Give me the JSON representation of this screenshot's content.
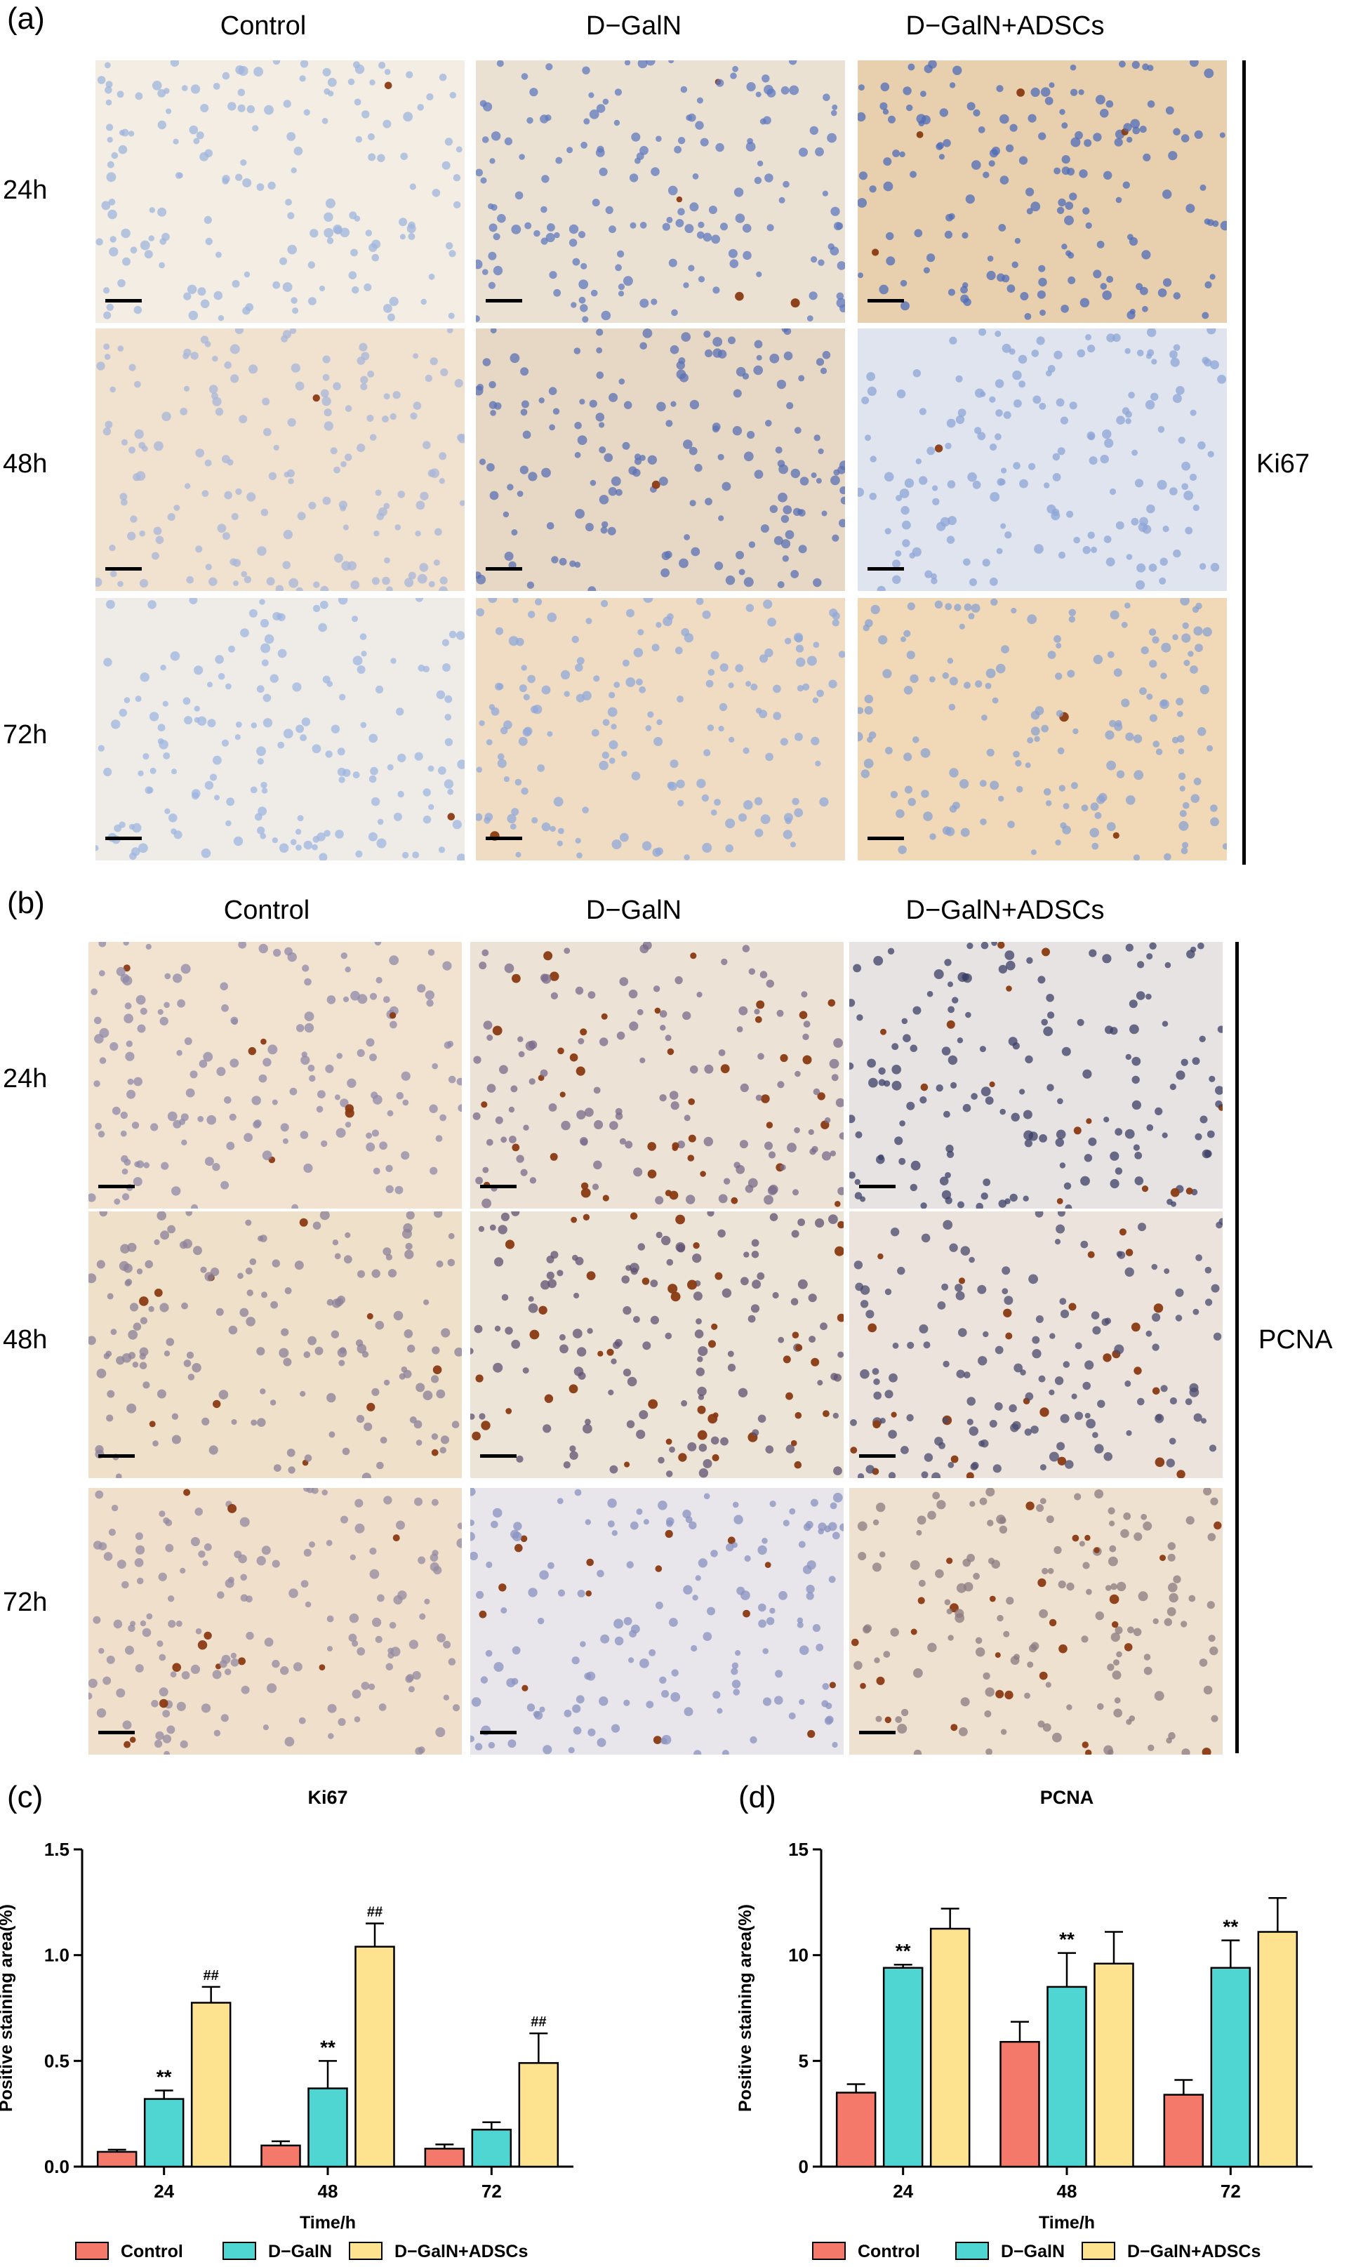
{
  "figure": {
    "panel_a": {
      "letter": "(a)",
      "columns": [
        "Control",
        "D−GalN",
        "D−GalN+ADSCs"
      ],
      "rows": [
        "24h",
        "48h",
        "72h"
      ],
      "stain_label": "Ki67"
    },
    "panel_b": {
      "letter": "(b)",
      "columns": [
        "Control",
        "D−GalN",
        "D−GalN+ADSCs"
      ],
      "rows": [
        "24h",
        "48h",
        "72h"
      ],
      "stain_label": "PCNA"
    },
    "panel_c_letter": "(c)",
    "panel_d_letter": "(d)"
  },
  "colors": {
    "control": "#f4796b",
    "dgaln": "#4fd6d3",
    "dgaln_adscs": "#fde28f"
  },
  "chart_data": [
    {
      "type": "bar",
      "title": "Ki67",
      "xlabel": "Time/h",
      "ylabel": "Positive staining area(%)",
      "categories": [
        "24",
        "48",
        "72"
      ],
      "ylim": [
        0,
        1.5
      ],
      "yticks": [
        "0.0",
        "0.5",
        "1.0",
        "1.5"
      ],
      "series": [
        {
          "name": "Control",
          "values": [
            0.07,
            0.1,
            0.085
          ],
          "errors": [
            0.01,
            0.02,
            0.02
          ],
          "marks": [
            "",
            "",
            ""
          ]
        },
        {
          "name": "D−GalN",
          "values": [
            0.32,
            0.37,
            0.175
          ],
          "errors": [
            0.04,
            0.13,
            0.035
          ],
          "marks": [
            "**",
            "**",
            ""
          ]
        },
        {
          "name": "D−GalN+ADSCs",
          "values": [
            0.775,
            1.04,
            0.49
          ],
          "errors": [
            0.075,
            0.11,
            0.14
          ],
          "marks": [
            "##",
            "##",
            "##"
          ]
        }
      ],
      "legend": "bottom"
    },
    {
      "type": "bar",
      "title": "PCNA",
      "xlabel": "Time/h",
      "ylabel": "Positive staining area(%)",
      "categories": [
        "24",
        "48",
        "72"
      ],
      "ylim": [
        0,
        15
      ],
      "yticks": [
        "0",
        "5",
        "10",
        "15"
      ],
      "series": [
        {
          "name": "Control",
          "values": [
            3.5,
            5.9,
            3.4
          ],
          "errors": [
            0.4,
            0.95,
            0.7
          ],
          "marks": [
            "",
            "",
            ""
          ]
        },
        {
          "name": "D−GalN",
          "values": [
            9.4,
            8.5,
            9.4
          ],
          "errors": [
            0.15,
            1.6,
            1.3
          ],
          "marks": [
            "**",
            "**",
            "**"
          ]
        },
        {
          "name": "D−GalN+ADSCs",
          "values": [
            11.25,
            9.6,
            11.1
          ],
          "errors": [
            0.95,
            1.5,
            1.6
          ],
          "marks": [
            "",
            "",
            ""
          ]
        }
      ],
      "legend": "bottom"
    }
  ]
}
